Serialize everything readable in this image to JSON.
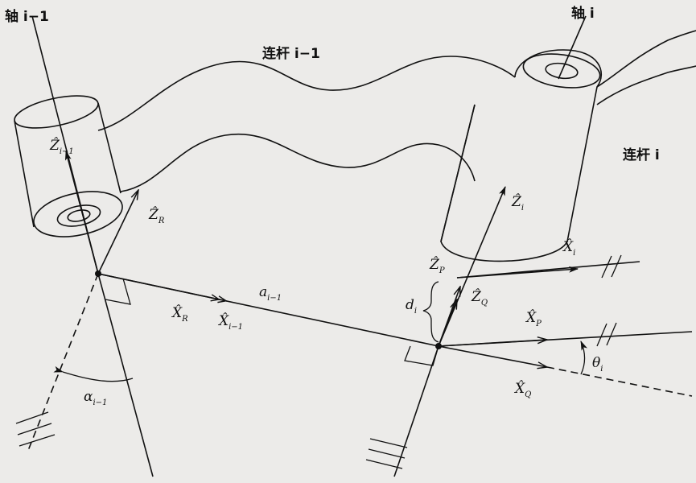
{
  "labels": {
    "axis_prev": "轴 i−1",
    "axis_cur": "轴 i",
    "link_prev": "连杆 i−1",
    "link_cur": "连杆 i",
    "z_prev": "Ẑ",
    "z_prev_sub": "i−1",
    "z_r": "Ẑ",
    "z_r_sub": "R",
    "x_r": "X̂",
    "x_r_sub": "R",
    "x_prev": "X̂",
    "x_prev_sub": "i−1",
    "a_prev": "a",
    "a_prev_sub": "i−1",
    "alpha_prev": "α",
    "alpha_prev_sub": "i−1",
    "z_cur": "Ẑ",
    "z_cur_sub": "i",
    "z_p": "Ẑ",
    "z_p_sub": "P",
    "z_q": "Ẑ",
    "z_q_sub": "Q",
    "d_cur": "d",
    "d_cur_sub": "i",
    "x_cur": "X̂",
    "x_cur_sub": "i",
    "x_p": "X̂",
    "x_p_sub": "P",
    "x_q": "X̂",
    "x_q_sub": "Q",
    "theta_cur": "θ",
    "theta_cur_sub": "i"
  },
  "colors": {
    "ink": "#111111",
    "paper": "#ecebe9"
  }
}
